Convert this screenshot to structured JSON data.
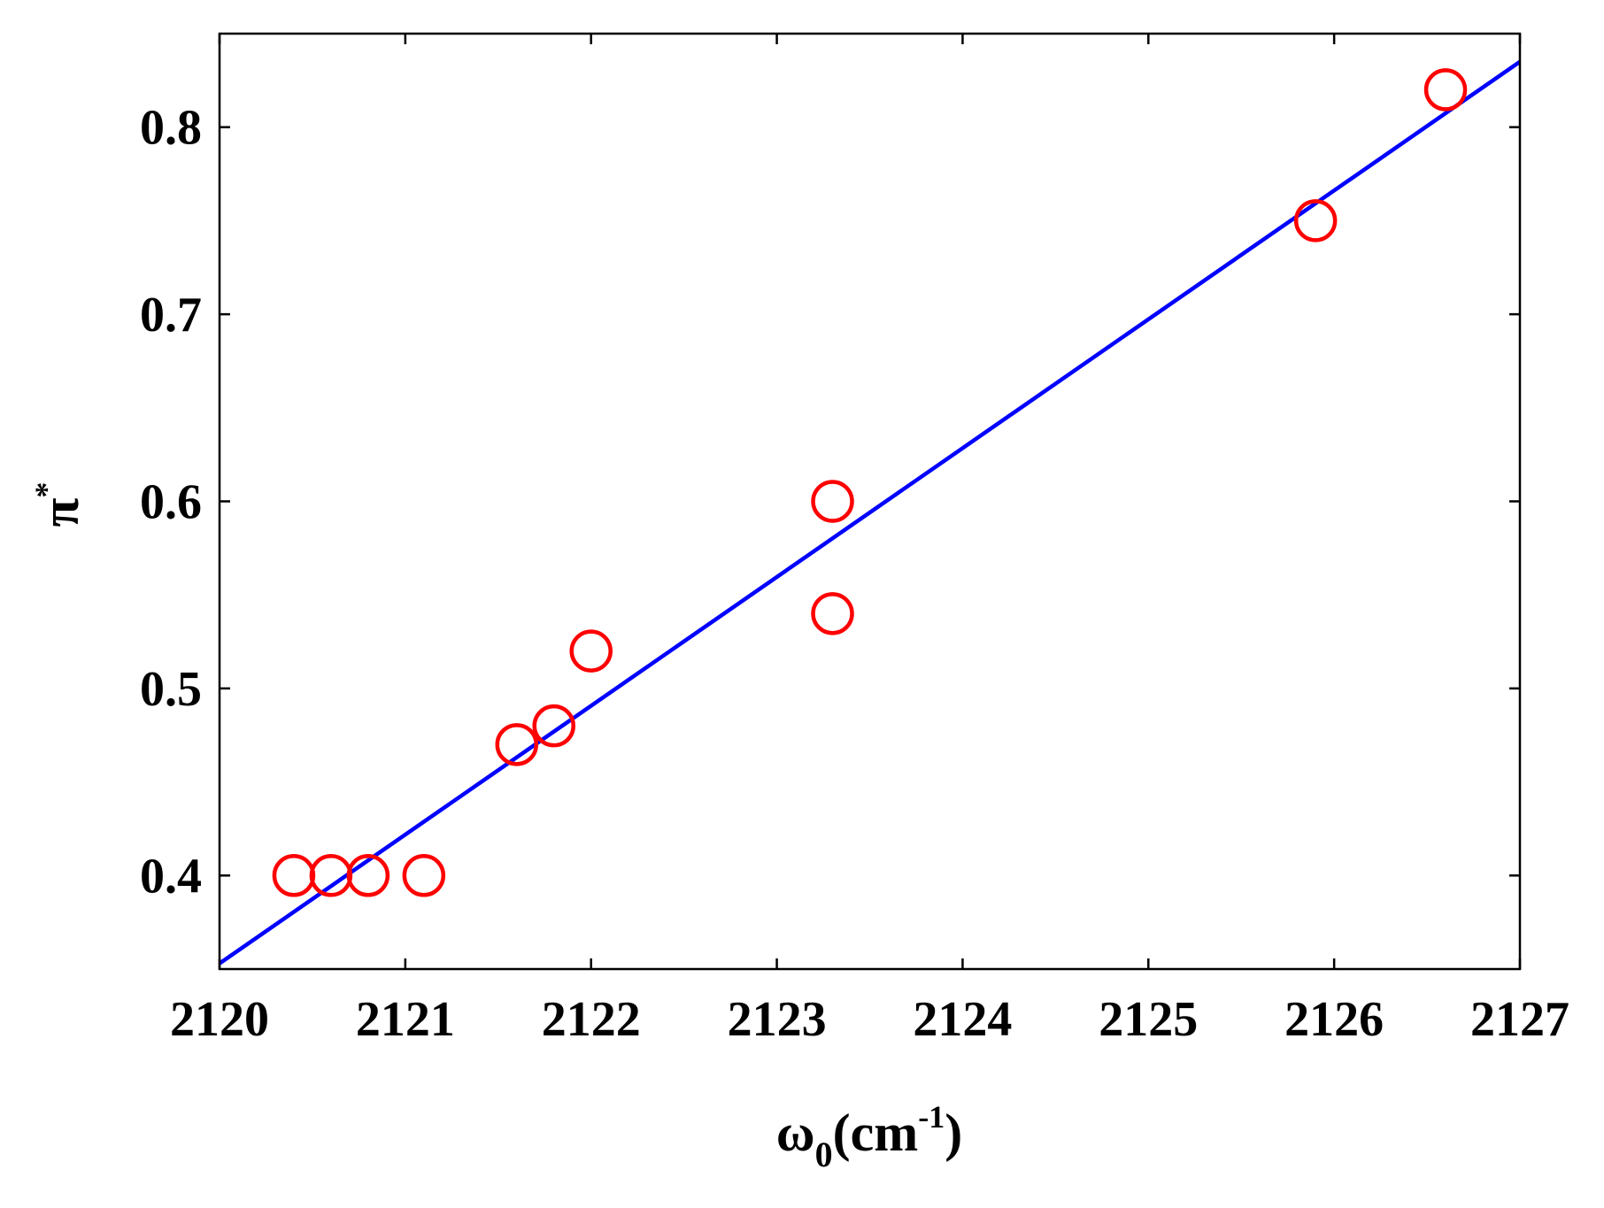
{
  "chart_data": {
    "type": "scatter",
    "title": "",
    "xlabel": {
      "base": "ω",
      "subscript": "0",
      "unit_open": "(cm",
      "superscript": "-1",
      "unit_close": ")"
    },
    "ylabel": {
      "base": "π",
      "superscript": "*"
    },
    "xlim": [
      2120,
      2127
    ],
    "ylim": [
      0.35,
      0.85
    ],
    "x_ticks": [
      2120,
      2121,
      2122,
      2123,
      2124,
      2125,
      2126,
      2127
    ],
    "x_tick_labels": [
      "2120",
      "2121",
      "2122",
      "2123",
      "2124",
      "2125",
      "2126",
      "2127"
    ],
    "y_ticks": [
      0.4,
      0.5,
      0.6,
      0.7,
      0.8
    ],
    "y_tick_labels": [
      "0.4",
      "0.5",
      "0.6",
      "0.7",
      "0.8"
    ],
    "grid": false,
    "series": [
      {
        "kind": "scatter",
        "marker": "open-circle",
        "color": "#ff0000",
        "points": [
          {
            "x": 2120.4,
            "y": 0.4
          },
          {
            "x": 2120.6,
            "y": 0.4
          },
          {
            "x": 2120.8,
            "y": 0.4
          },
          {
            "x": 2121.1,
            "y": 0.4
          },
          {
            "x": 2121.6,
            "y": 0.47
          },
          {
            "x": 2121.8,
            "y": 0.48
          },
          {
            "x": 2122.0,
            "y": 0.52
          },
          {
            "x": 2123.3,
            "y": 0.6
          },
          {
            "x": 2123.3,
            "y": 0.54
          },
          {
            "x": 2125.9,
            "y": 0.75
          },
          {
            "x": 2126.6,
            "y": 0.82
          }
        ]
      },
      {
        "kind": "line",
        "color": "#0000ff",
        "points": [
          {
            "x": 2120.0,
            "y": 0.353
          },
          {
            "x": 2127.0,
            "y": 0.835
          }
        ]
      }
    ]
  }
}
